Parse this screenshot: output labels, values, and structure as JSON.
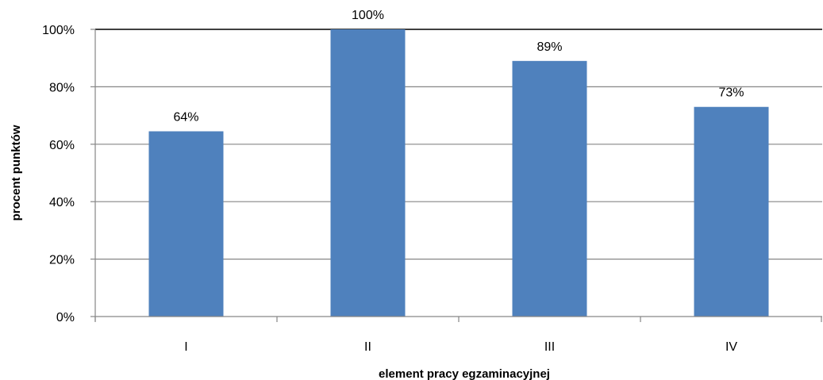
{
  "chart_data": {
    "type": "bar",
    "categories": [
      "I",
      "II",
      "III",
      "IV"
    ],
    "values": [
      64.5,
      100,
      89,
      73
    ],
    "data_labels": [
      "64%",
      "100%",
      "89%",
      "73%"
    ],
    "ylim": [
      0,
      100
    ],
    "yticks": [
      0,
      20,
      40,
      60,
      80,
      100
    ],
    "ytick_labels": [
      "0%",
      "20%",
      "40%",
      "60%",
      "80%",
      "100%"
    ],
    "xlabel": "element pracy egzaminacyjnej",
    "ylabel": "procent punktów",
    "grid": "horizontal",
    "legend": "none",
    "colors": {
      "bar": "#4f81bd",
      "grid": "#868686",
      "axis": "#868686",
      "top_line": "#000000"
    }
  }
}
